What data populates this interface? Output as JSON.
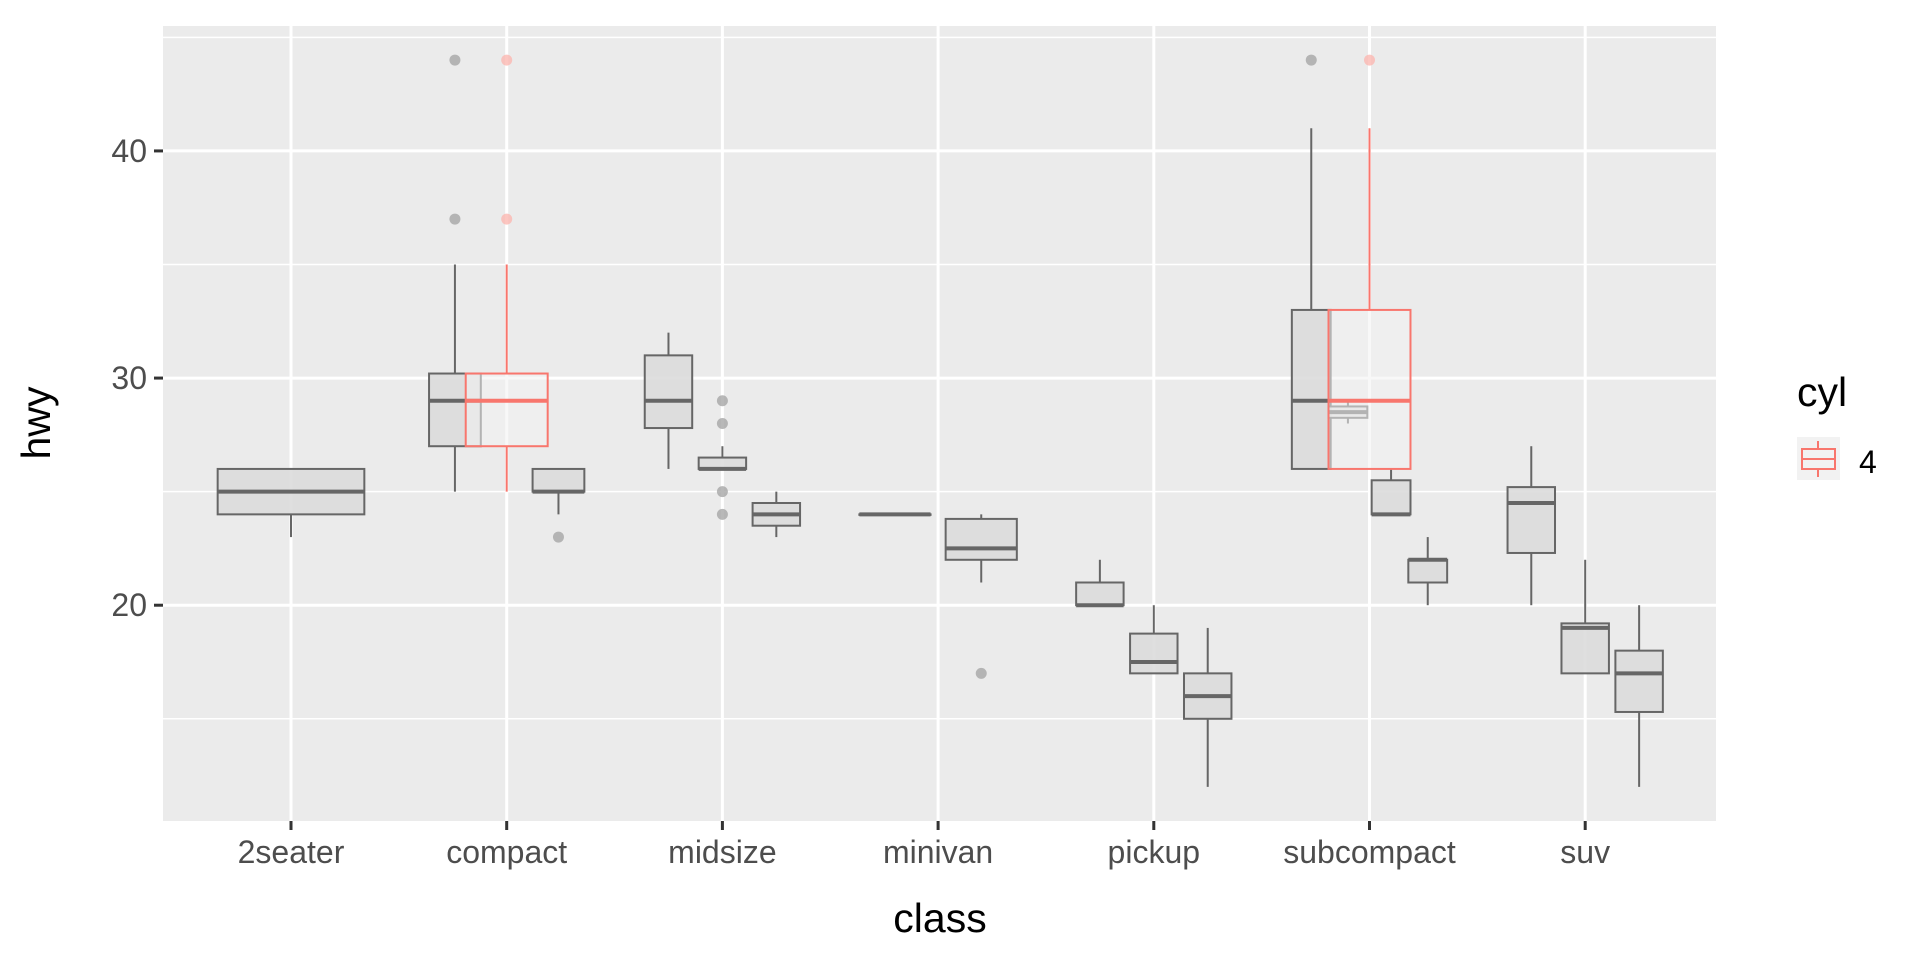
{
  "chart_data": {
    "type": "boxplot",
    "title": "",
    "xlabel": "class",
    "ylabel": "hwy",
    "ylim": [
      10.5,
      45.5
    ],
    "y_ticks": [
      20,
      30,
      40
    ],
    "categories": [
      "2seater",
      "compact",
      "midsize",
      "minivan",
      "pickup",
      "subcompact",
      "suv"
    ],
    "legend": {
      "title": "cyl",
      "entries": [
        "4"
      ],
      "placement": "right"
    },
    "colors": {
      "panel": "#EBEBEB",
      "grid": "#FFFFFF",
      "gray_box": "#666666",
      "gray_fill": "#DCDCDC",
      "red_box": "#F8766D",
      "red_fill": "#F2F2F2",
      "outlier_gray": "#A6A6A6",
      "outlier_red": "#FBB8B2",
      "axis_text": "#4D4D4D"
    },
    "series": [
      {
        "name": "dodged-boxes",
        "boxes": [
          {
            "category": "2seater",
            "offset": 0,
            "width": 0.68,
            "min": 23,
            "q1": 24,
            "median": 25,
            "q3": 26,
            "max": 26,
            "outliers": []
          },
          {
            "category": "compact",
            "offset": -0.24,
            "width": 0.24,
            "min": 25,
            "q1": 27,
            "median": 29,
            "q3": 30.2,
            "max": 35,
            "outliers": [
              37,
              44
            ]
          },
          {
            "category": "compact",
            "offset": 0.24,
            "width": 0.24,
            "min": 24,
            "q1": 25,
            "median": 25,
            "q3": 26,
            "max": 26,
            "outliers": [
              23
            ]
          },
          {
            "category": "midsize",
            "offset": -0.25,
            "width": 0.22,
            "min": 26,
            "q1": 27.8,
            "median": 29,
            "q3": 31,
            "max": 32,
            "outliers": []
          },
          {
            "category": "midsize",
            "offset": 0,
            "width": 0.22,
            "min": 26,
            "q1": 26,
            "median": 26,
            "q3": 26.5,
            "max": 27,
            "outliers": [
              29,
              28,
              25,
              24
            ]
          },
          {
            "category": "midsize",
            "offset": 0.25,
            "width": 0.22,
            "min": 23,
            "q1": 23.5,
            "median": 24,
            "q3": 24.5,
            "max": 25,
            "outliers": []
          },
          {
            "category": "minivan",
            "offset": -0.2,
            "width": 0.33,
            "min": 24,
            "q1": 24,
            "median": 24,
            "q3": 24,
            "max": 24,
            "outliers": []
          },
          {
            "category": "minivan",
            "offset": 0.2,
            "width": 0.33,
            "min": 21,
            "q1": 22,
            "median": 22.5,
            "q3": 23.8,
            "max": 24,
            "outliers": [
              17
            ]
          },
          {
            "category": "pickup",
            "offset": -0.25,
            "width": 0.22,
            "min": 20,
            "q1": 20,
            "median": 20,
            "q3": 21,
            "max": 22,
            "outliers": []
          },
          {
            "category": "pickup",
            "offset": 0,
            "width": 0.22,
            "min": 17,
            "q1": 17,
            "median": 17.5,
            "q3": 18.75,
            "max": 20,
            "outliers": []
          },
          {
            "category": "pickup",
            "offset": 0.25,
            "width": 0.22,
            "min": 12,
            "q1": 15,
            "median": 16,
            "q3": 17,
            "max": 19,
            "outliers": []
          },
          {
            "category": "subcompact",
            "offset": -0.27,
            "width": 0.18,
            "min": 26,
            "q1": 26,
            "median": 29,
            "q3": 33,
            "max": 41,
            "outliers": [
              44
            ]
          },
          {
            "category": "subcompact",
            "offset": -0.1,
            "width": 0.18,
            "min": 28,
            "q1": 28.25,
            "median": 28.5,
            "q3": 28.75,
            "max": 29,
            "outliers": []
          },
          {
            "category": "subcompact",
            "offset": 0.1,
            "width": 0.18,
            "min": 24,
            "q1": 24,
            "median": 24,
            "q3": 25.5,
            "max": 26,
            "outliers": []
          },
          {
            "category": "subcompact",
            "offset": 0.27,
            "width": 0.18,
            "min": 20,
            "q1": 21,
            "median": 22,
            "q3": 22,
            "max": 23,
            "outliers": []
          },
          {
            "category": "suv",
            "offset": -0.25,
            "width": 0.22,
            "min": 20,
            "q1": 22.3,
            "median": 24.5,
            "q3": 25.2,
            "max": 27,
            "outliers": []
          },
          {
            "category": "suv",
            "offset": 0,
            "width": 0.22,
            "min": 17,
            "q1": 17,
            "median": 19,
            "q3": 19.2,
            "max": 22,
            "outliers": []
          },
          {
            "category": "suv",
            "offset": 0.25,
            "width": 0.22,
            "min": 12,
            "q1": 15.3,
            "median": 17,
            "q3": 18,
            "max": 20,
            "outliers": []
          }
        ]
      },
      {
        "name": "4",
        "boxes": [
          {
            "category": "compact",
            "offset": 0,
            "width": 0.38,
            "min": 25,
            "q1": 27,
            "median": 29,
            "q3": 30.2,
            "max": 35,
            "outliers": [
              37,
              44
            ]
          },
          {
            "category": "subcompact",
            "offset": 0,
            "width": 0.38,
            "min": 26,
            "q1": 26,
            "median": 29,
            "q3": 33,
            "max": 41,
            "outliers": [
              44
            ]
          }
        ]
      }
    ]
  }
}
